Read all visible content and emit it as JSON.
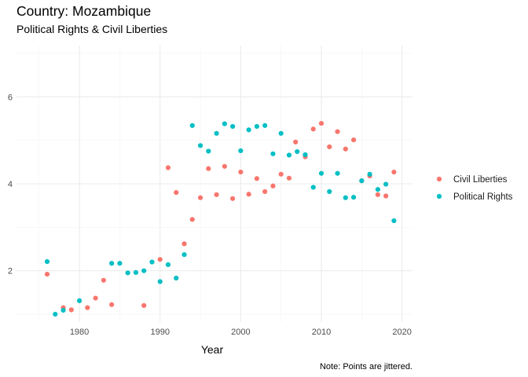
{
  "title": "Country: Mozambique",
  "subtitle": "Political Rights & Civil Liberties",
  "chart_data": {
    "type": "scatter",
    "title": "Country: Mozambique",
    "subtitle": "Political Rights & Civil Liberties",
    "xlabel": "Year",
    "ylabel": "",
    "caption": "Note: Points are jittered.",
    "xlim": [
      1972.2,
      2021.3
    ],
    "ylim": [
      0.82,
      7.18
    ],
    "x_ticks": [
      1980,
      1990,
      2000,
      2010,
      2020
    ],
    "y_ticks": [
      2,
      4,
      6
    ],
    "grid": true,
    "legend_position": "right",
    "series": [
      {
        "name": "Civil Liberties",
        "color": "#F8766D",
        "points": [
          [
            1976.0,
            1.92
          ],
          [
            1978.0,
            1.15
          ],
          [
            1979.0,
            1.1
          ],
          [
            1981.0,
            1.15
          ],
          [
            1982.0,
            1.37
          ],
          [
            1983.0,
            1.78
          ],
          [
            1984.0,
            1.22
          ],
          [
            1988.0,
            1.2
          ],
          [
            1990.0,
            2.26
          ],
          [
            1991.0,
            4.37
          ],
          [
            1992.0,
            3.8
          ],
          [
            1993.0,
            2.62
          ],
          [
            1994.0,
            3.18
          ],
          [
            1995.0,
            3.68
          ],
          [
            1996.0,
            4.35
          ],
          [
            1997.0,
            3.75
          ],
          [
            1998.0,
            4.4
          ],
          [
            1999.0,
            3.66
          ],
          [
            2000.0,
            4.27
          ],
          [
            2001.0,
            3.76
          ],
          [
            2002.0,
            4.12
          ],
          [
            2003.0,
            3.82
          ],
          [
            2004.0,
            3.95
          ],
          [
            2005.0,
            4.22
          ],
          [
            2006.0,
            4.13
          ],
          [
            2006.8,
            4.96
          ],
          [
            2008.0,
            4.62
          ],
          [
            2009.0,
            5.26
          ],
          [
            2010.0,
            5.39
          ],
          [
            2011.0,
            4.85
          ],
          [
            2012.0,
            5.2
          ],
          [
            2013.0,
            4.8
          ],
          [
            2014.0,
            5.01
          ],
          [
            2015.0,
            4.07
          ],
          [
            2016.0,
            4.18
          ],
          [
            2017.0,
            3.75
          ],
          [
            2018.0,
            3.72
          ],
          [
            2019.0,
            4.27
          ]
        ]
      },
      {
        "name": "Political Rights",
        "color": "#00BFC4",
        "points": [
          [
            1976.0,
            2.21
          ],
          [
            1977.0,
            1.0
          ],
          [
            1978.0,
            1.09
          ],
          [
            1980.0,
            1.31
          ],
          [
            1984.0,
            2.17
          ],
          [
            1985.0,
            2.17
          ],
          [
            1986.0,
            1.95
          ],
          [
            1987.0,
            1.96
          ],
          [
            1988.0,
            2.0
          ],
          [
            1989.0,
            2.2
          ],
          [
            1990.0,
            1.75
          ],
          [
            1991.0,
            2.14
          ],
          [
            1992.0,
            1.83
          ],
          [
            1993.0,
            2.37
          ],
          [
            1994.0,
            5.34
          ],
          [
            1995.0,
            4.88
          ],
          [
            1996.0,
            4.75
          ],
          [
            1997.0,
            5.16
          ],
          [
            1998.0,
            5.38
          ],
          [
            1999.0,
            5.32
          ],
          [
            2000.0,
            4.76
          ],
          [
            2001.0,
            5.24
          ],
          [
            2002.0,
            5.32
          ],
          [
            2003.0,
            5.34
          ],
          [
            2004.0,
            4.69
          ],
          [
            2005.0,
            5.16
          ],
          [
            2006.0,
            4.66
          ],
          [
            2007.0,
            4.74
          ],
          [
            2008.0,
            4.67
          ],
          [
            2009.0,
            3.92
          ],
          [
            2010.0,
            4.24
          ],
          [
            2011.0,
            3.82
          ],
          [
            2012.0,
            4.24
          ],
          [
            2013.0,
            3.68
          ],
          [
            2014.0,
            3.69
          ],
          [
            2015.0,
            4.07
          ],
          [
            2016.0,
            4.22
          ],
          [
            2017.0,
            3.87
          ],
          [
            2018.0,
            3.99
          ],
          [
            2019.0,
            3.15
          ]
        ]
      }
    ]
  }
}
